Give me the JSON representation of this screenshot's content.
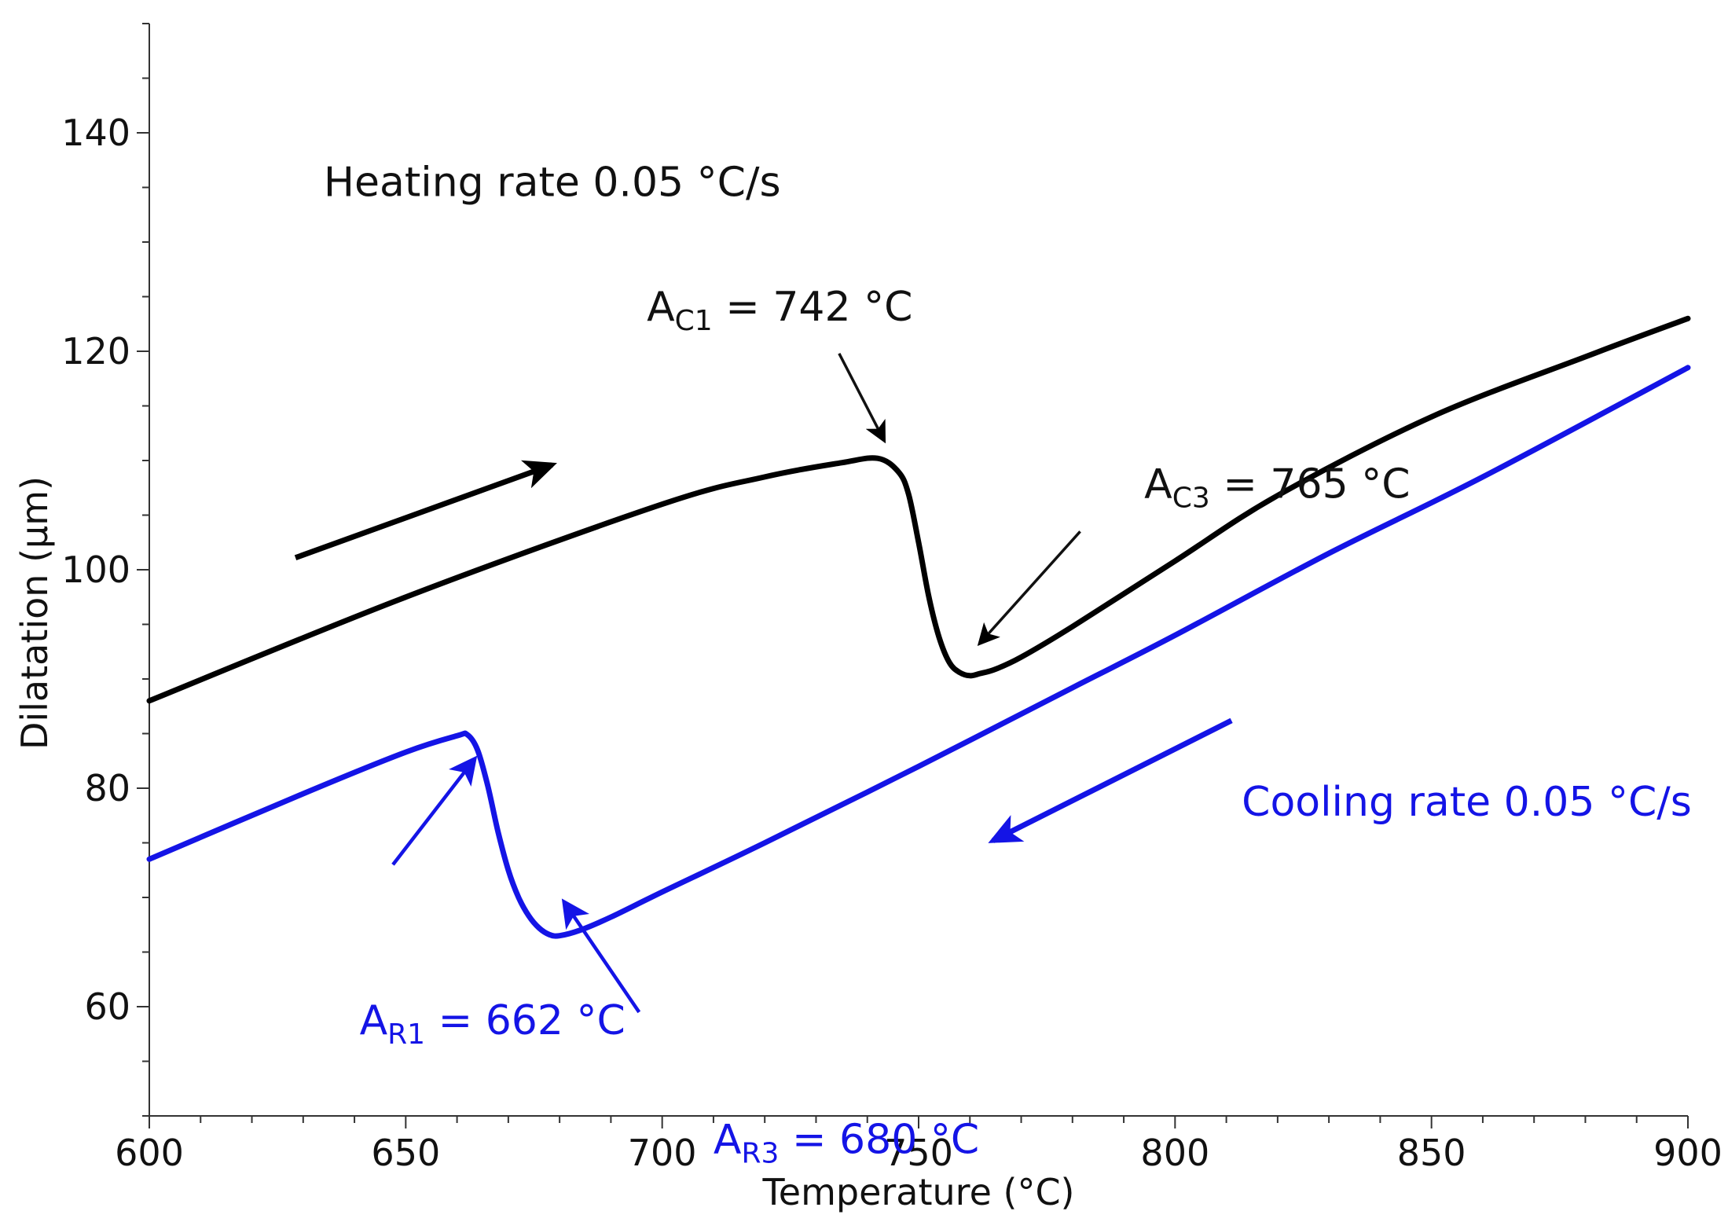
{
  "chart_data": {
    "type": "line",
    "title": "",
    "xlabel": "Temperature (°C)",
    "ylabel": "Dilatation (µm)",
    "xlim": [
      600,
      900
    ],
    "ylim": [
      50,
      150
    ],
    "x_ticks": [
      600,
      650,
      700,
      750,
      800,
      850,
      900
    ],
    "y_ticks": [
      60,
      80,
      100,
      120,
      140
    ],
    "x_tick_labels": [
      "600",
      "650",
      "700",
      "750",
      "800",
      "850",
      "900"
    ],
    "y_tick_labels": [
      "60",
      "80",
      "100",
      "120",
      "140"
    ],
    "x_minor_step": 10,
    "y_minor_step": 5,
    "grid": false,
    "series": [
      {
        "name": "Heating",
        "color": "#000000",
        "x": [
          600,
          650,
          700,
          720,
          735,
          742,
          746,
          748,
          750,
          752,
          754,
          756,
          758,
          760,
          762,
          765,
          770,
          780,
          800,
          820,
          850,
          880,
          900
        ],
        "y": [
          88.0,
          97.5,
          106.0,
          108.5,
          109.8,
          110.2,
          109.0,
          107.0,
          102.5,
          97.5,
          93.8,
          91.5,
          90.6,
          90.3,
          90.5,
          90.9,
          92.0,
          94.8,
          100.8,
          106.8,
          114.0,
          119.5,
          123.0
        ]
      },
      {
        "name": "Cooling",
        "color": "#1414e6",
        "x": [
          600,
          630,
          650,
          660,
          662,
          664,
          666,
          668,
          670,
          672,
          674,
          676,
          678,
          680,
          684,
          690,
          700,
          720,
          750,
          780,
          800,
          830,
          860,
          900
        ],
        "y": [
          73.5,
          79.5,
          83.3,
          84.8,
          84.9,
          83.5,
          80.2,
          76.0,
          72.5,
          70.0,
          68.3,
          67.2,
          66.6,
          66.5,
          67.0,
          68.2,
          70.5,
          75.0,
          82.0,
          89.2,
          94.0,
          101.5,
          108.5,
          118.5
        ]
      }
    ],
    "annotations": [
      {
        "id": "heating_rate",
        "text": "Heating rate 0.05 °C/s",
        "x": 634,
        "y": 134.2,
        "color": "#111111"
      },
      {
        "id": "cooling_rate",
        "text": "Cooling rate 0.05 °C/s",
        "x": 813,
        "y": 77.5,
        "color": "#1414e6"
      },
      {
        "id": "ac1",
        "base": "A",
        "sub": "C1",
        "rest": " = 742 °C",
        "x": 697,
        "y": 122.8,
        "color": "#111111",
        "arrow_from": [
          734.5,
          119.8
        ],
        "arrow_to": [
          743.2,
          111.9
        ]
      },
      {
        "id": "ac3",
        "base": "A",
        "sub": "C3",
        "rest": " = 765 °C",
        "x": 794,
        "y": 106.6,
        "color": "#111111",
        "arrow_from": [
          781.5,
          103.5
        ],
        "arrow_to": [
          762.0,
          93.3
        ]
      },
      {
        "id": "ar1",
        "base": "A",
        "sub": "R1",
        "rest": " = 662 °C",
        "x": 641,
        "y": 57.5,
        "color": "#1414e6",
        "arrow_from": [
          647.5,
          73.0
        ],
        "arrow_to": [
          663.3,
          82.6
        ]
      },
      {
        "id": "ar3",
        "base": "A",
        "sub": "R3",
        "rest": " = 680 °C",
        "x": 710,
        "y": 46.6,
        "color": "#1414e6",
        "arrow_from": [
          695.5,
          59.5
        ],
        "arrow_to": [
          681.0,
          69.5
        ]
      }
    ],
    "direction_arrows": [
      {
        "id": "heating_direction",
        "color": "#000000",
        "from": [
          628.5,
          101.1
        ],
        "to": [
          678.5,
          109.6
        ]
      },
      {
        "id": "cooling_direction",
        "color": "#1414e6",
        "from": [
          811.0,
          86.2
        ],
        "to": [
          764.5,
          75.2
        ]
      }
    ]
  }
}
